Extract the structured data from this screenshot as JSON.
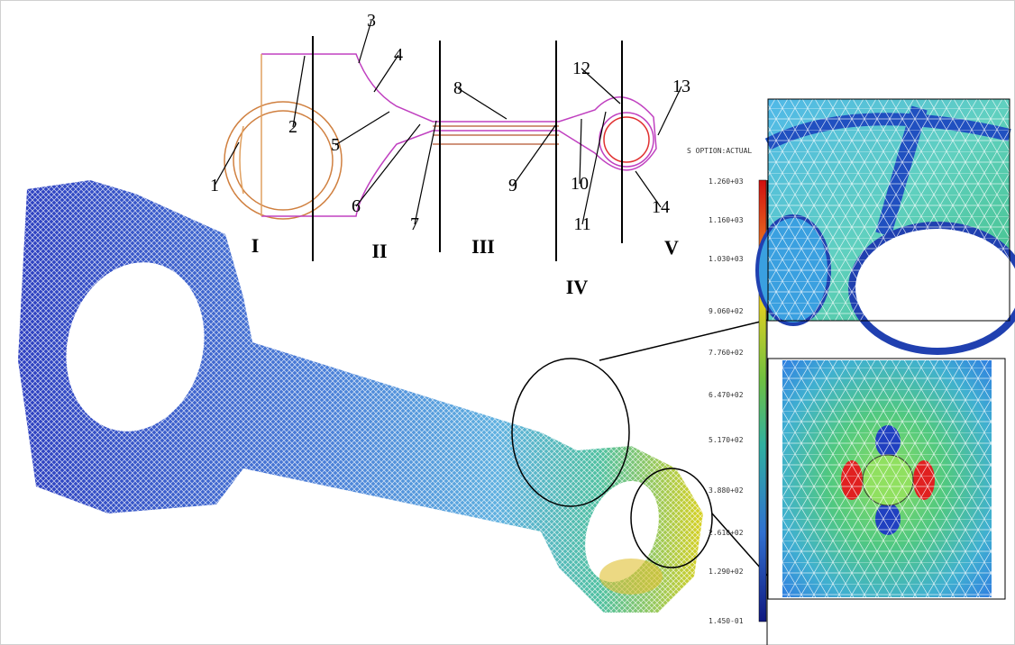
{
  "schematic": {
    "point_labels": [
      "1",
      "2",
      "3",
      "4",
      "5",
      "6",
      "7",
      "8",
      "9",
      "10",
      "11",
      "12",
      "13",
      "14"
    ],
    "sections": [
      "I",
      "II",
      "III",
      "IV",
      "V"
    ]
  },
  "legend": {
    "title": "S OPTION:ACTUAL",
    "labels": [
      "1.260+03",
      "1.160+03",
      "1.030+03",
      "9.060+02",
      "7.760+02",
      "6.470+02",
      "5.170+02",
      "3.880+02",
      "2.610+02",
      "1.290+02",
      "1.450-01"
    ]
  }
}
